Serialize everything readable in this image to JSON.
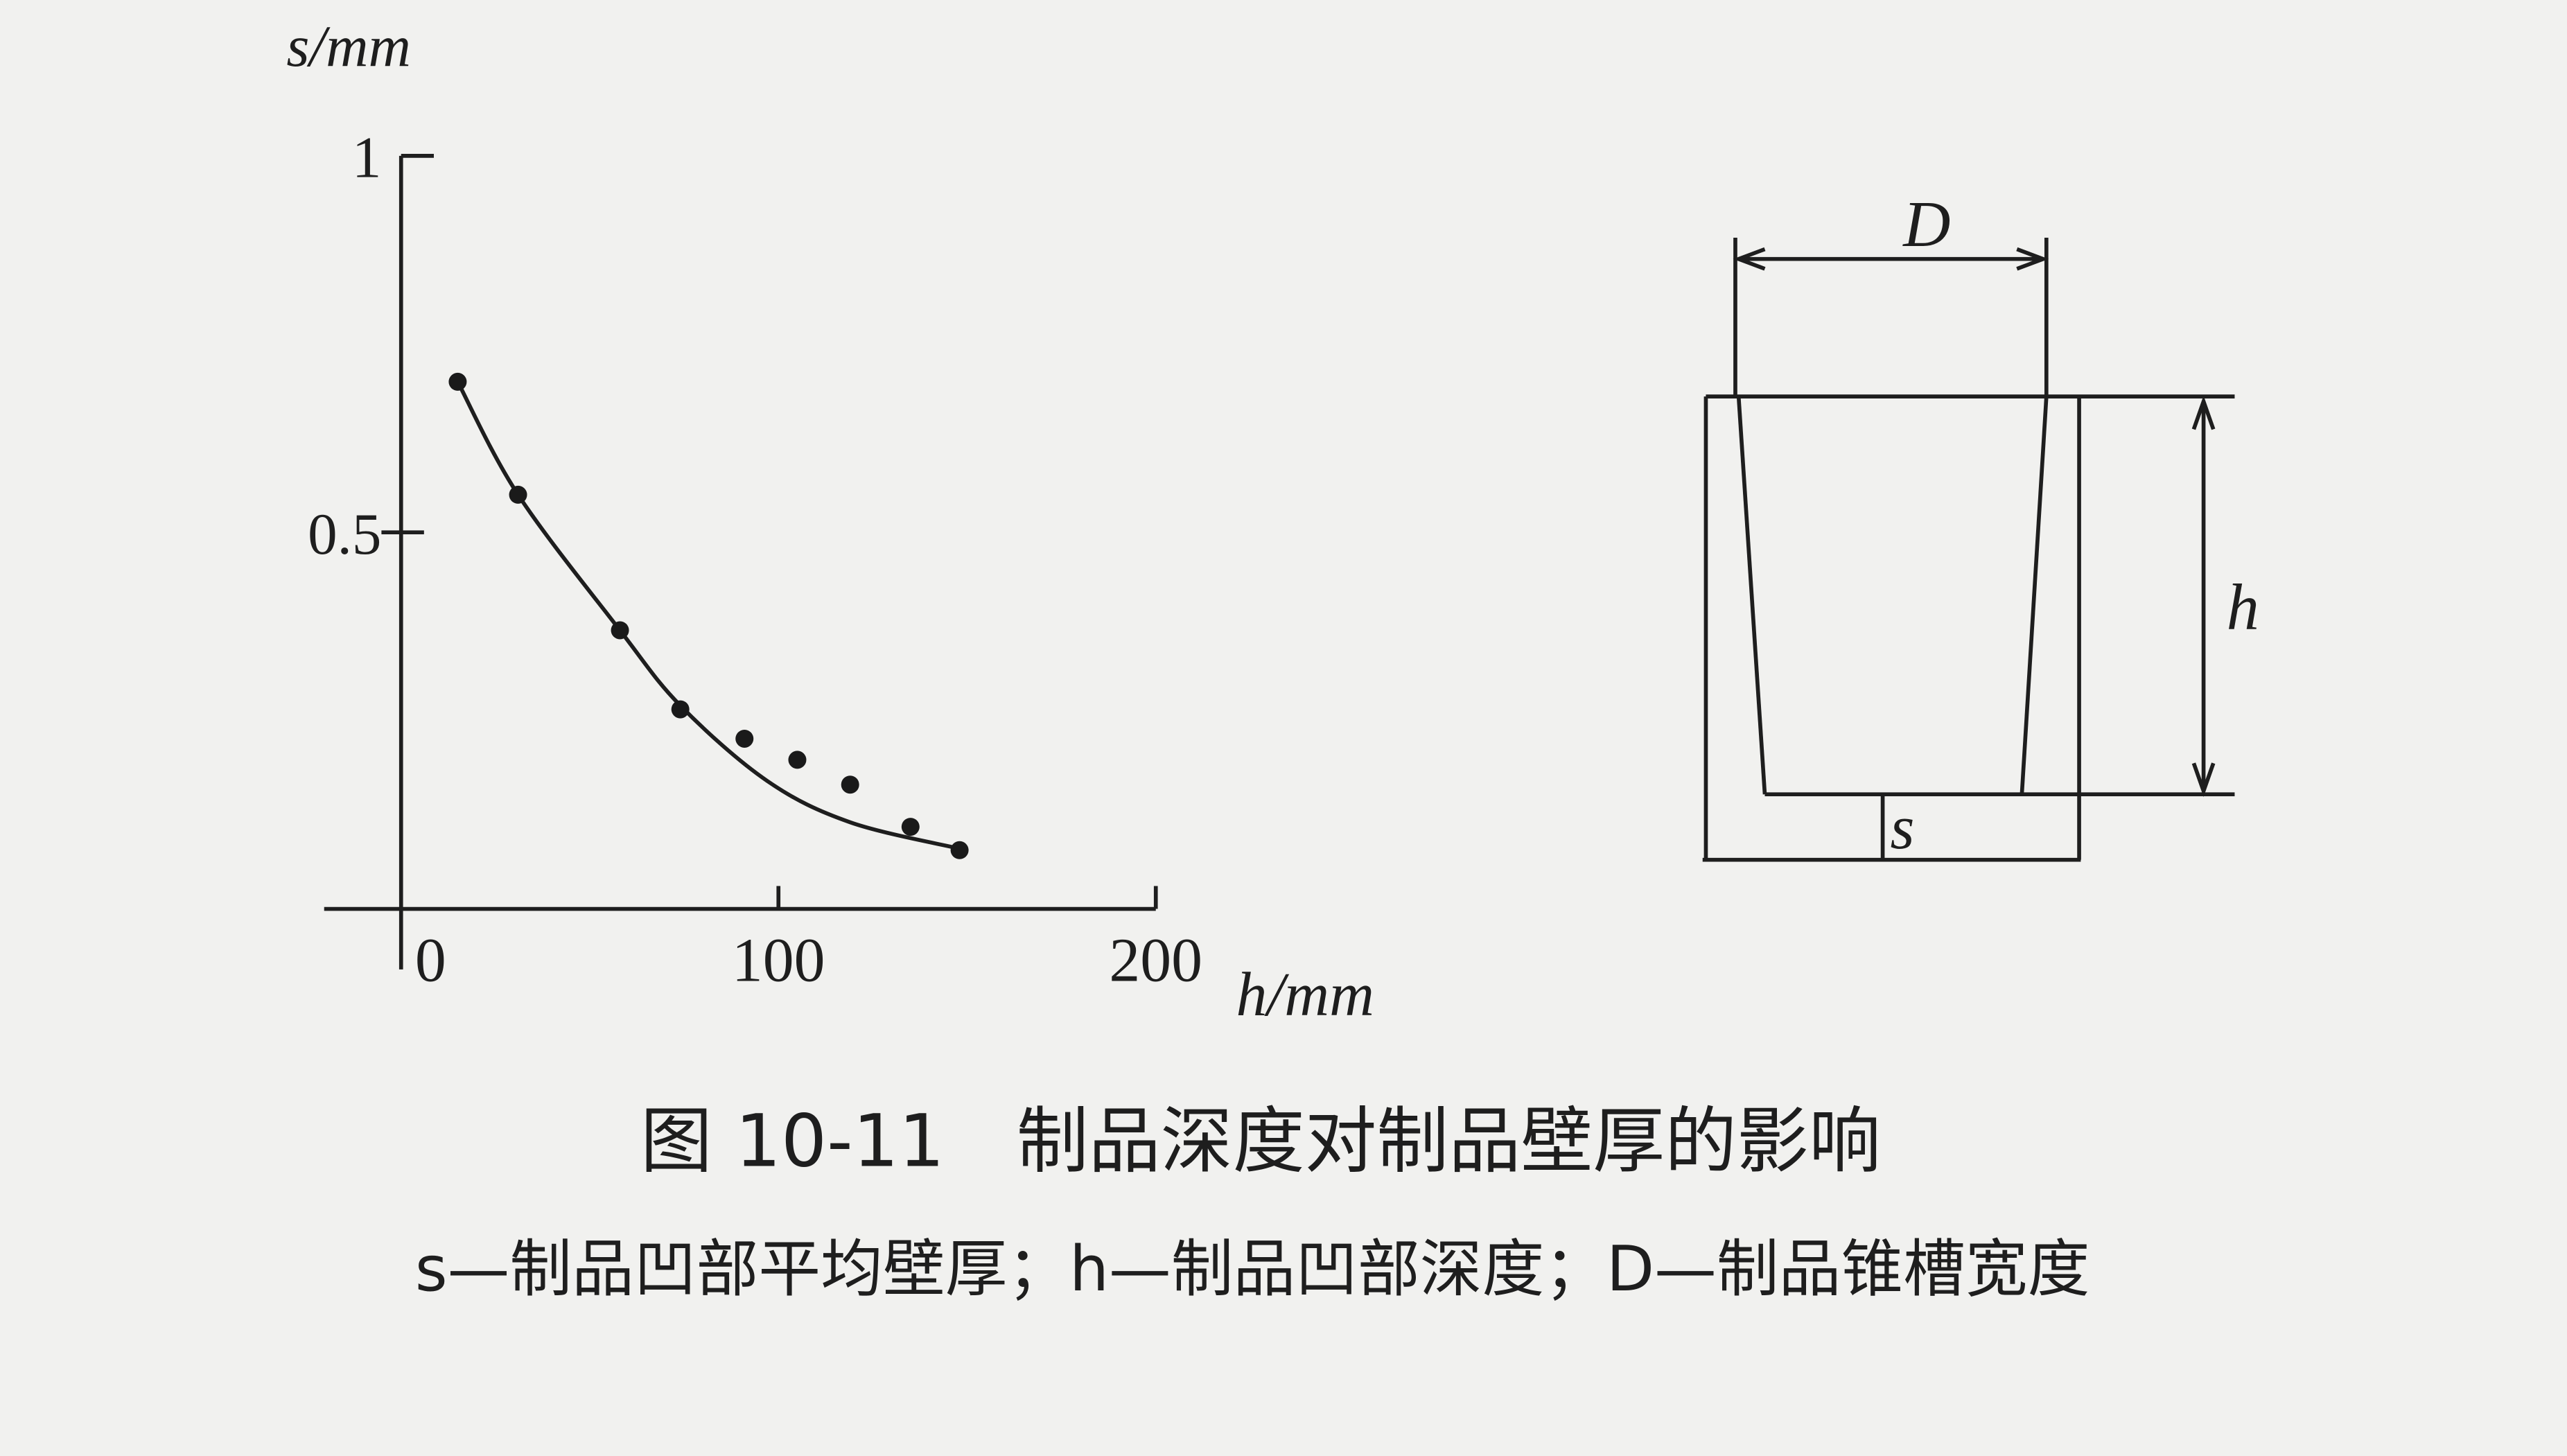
{
  "chart_data": {
    "type": "scatter",
    "x_label": "h/mm",
    "y_label": "s/mm",
    "xlim": [
      0,
      200
    ],
    "ylim": [
      0,
      1
    ],
    "xticks": [
      0,
      100,
      200
    ],
    "yticks": [
      0.5,
      1
    ],
    "color": "#1a1a1a",
    "points": {
      "x": [
        15,
        31,
        58,
        74,
        91,
        105,
        119,
        135,
        148
      ],
      "values": [
        0.7,
        0.55,
        0.37,
        0.265,
        0.226,
        0.198,
        0.165,
        0.109,
        0.078
      ]
    },
    "curve": {
      "x": [
        15,
        31,
        58,
        74,
        97,
        119,
        148
      ],
      "values": [
        0.7,
        0.55,
        0.37,
        0.27,
        0.17,
        0.115,
        0.08
      ]
    }
  },
  "diagram": {
    "labels": {
      "width": "D",
      "depth": "h",
      "wall": "s"
    }
  },
  "caption": {
    "title": "图 10-11　制品深度对制品壁厚的影响",
    "note": "s—制品凹部平均壁厚；h—制品凹部深度；D—制品锥槽宽度"
  }
}
